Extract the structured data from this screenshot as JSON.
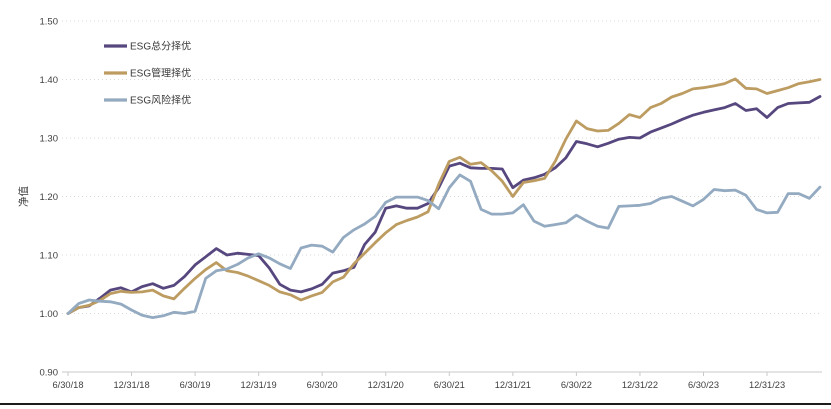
{
  "page": {
    "background_color": "#ffffff",
    "bottom_rule_color": "#1c1c1c"
  },
  "chart_data": {
    "type": "line",
    "title": "",
    "xlabel": "",
    "ylabel": "净值",
    "ylim": [
      0.9,
      1.5
    ],
    "y_tick_values": [
      0.9,
      1.0,
      1.1,
      1.2,
      1.3,
      1.4,
      1.5
    ],
    "y_tick_labels": [
      "0.90",
      "1.00",
      "1.10",
      "1.20",
      "1.30",
      "1.40",
      "1.50"
    ],
    "x_tick_labels": [
      "6/30/18",
      "12/31/18",
      "6/30/19",
      "12/31/19",
      "6/30/20",
      "12/31/20",
      "6/30/21",
      "12/31/21",
      "6/30/22",
      "12/31/22",
      "6/30/23",
      "12/31/23"
    ],
    "x_tick_months": [
      0,
      6,
      12,
      18,
      24,
      30,
      36,
      42,
      48,
      54,
      60,
      66
    ],
    "months_total": 72,
    "x_start_label": "6/30/18",
    "grid": "horizontal dotted",
    "axis_color": "#c9c9c9",
    "grid_color": "#d9d9d9",
    "label_color": "#3f3f3f",
    "legend": {
      "position": "top-left-inside",
      "items": [
        "ESG总分择优",
        "ESG管理择优",
        "ESG风险择优"
      ]
    },
    "series": [
      {
        "name": "ESG总分择优",
        "color": "#57477f",
        "values": [
          1.0,
          1.01,
          1.013,
          1.026,
          1.04,
          1.044,
          1.037,
          1.046,
          1.051,
          1.043,
          1.048,
          1.063,
          1.083,
          1.097,
          1.111,
          1.1,
          1.103,
          1.101,
          1.099,
          1.078,
          1.05,
          1.04,
          1.037,
          1.042,
          1.05,
          1.069,
          1.073,
          1.079,
          1.118,
          1.139,
          1.18,
          1.184,
          1.18,
          1.18,
          1.188,
          1.215,
          1.252,
          1.257,
          1.249,
          1.248,
          1.248,
          1.247,
          1.215,
          1.228,
          1.232,
          1.238,
          1.249,
          1.266,
          1.294,
          1.29,
          1.285,
          1.291,
          1.298,
          1.301,
          1.3,
          1.31,
          1.317,
          1.324,
          1.332,
          1.339,
          1.344,
          1.348,
          1.352,
          1.359,
          1.347,
          1.35,
          1.335,
          1.352,
          1.359,
          1.36,
          1.361,
          1.371
        ]
      },
      {
        "name": "ESG管理择优",
        "color": "#bd9c62",
        "values": [
          1.0,
          1.01,
          1.014,
          1.022,
          1.034,
          1.038,
          1.036,
          1.037,
          1.04,
          1.03,
          1.025,
          1.043,
          1.06,
          1.075,
          1.087,
          1.073,
          1.07,
          1.064,
          1.056,
          1.048,
          1.037,
          1.032,
          1.023,
          1.03,
          1.036,
          1.054,
          1.062,
          1.085,
          1.103,
          1.121,
          1.138,
          1.152,
          1.159,
          1.165,
          1.174,
          1.221,
          1.26,
          1.267,
          1.255,
          1.258,
          1.244,
          1.226,
          1.2,
          1.224,
          1.227,
          1.231,
          1.26,
          1.298,
          1.329,
          1.316,
          1.312,
          1.313,
          1.325,
          1.34,
          1.335,
          1.352,
          1.359,
          1.37,
          1.376,
          1.384,
          1.386,
          1.389,
          1.393,
          1.401,
          1.385,
          1.384,
          1.376,
          1.381,
          1.386,
          1.393,
          1.396,
          1.4
        ]
      },
      {
        "name": "ESG风险择优",
        "color": "#93aac1",
        "values": [
          1.0,
          1.017,
          1.023,
          1.021,
          1.02,
          1.016,
          1.006,
          0.997,
          0.993,
          0.996,
          1.002,
          1.0,
          1.004,
          1.06,
          1.073,
          1.076,
          1.084,
          1.095,
          1.102,
          1.095,
          1.085,
          1.077,
          1.112,
          1.117,
          1.115,
          1.105,
          1.13,
          1.143,
          1.153,
          1.166,
          1.19,
          1.199,
          1.199,
          1.199,
          1.193,
          1.179,
          1.215,
          1.237,
          1.226,
          1.178,
          1.17,
          1.17,
          1.172,
          1.186,
          1.158,
          1.149,
          1.152,
          1.155,
          1.168,
          1.158,
          1.149,
          1.146,
          1.183,
          1.184,
          1.185,
          1.188,
          1.197,
          1.2,
          1.192,
          1.184,
          1.195,
          1.212,
          1.21,
          1.211,
          1.202,
          1.178,
          1.172,
          1.173,
          1.205,
          1.205,
          1.197,
          1.216
        ]
      }
    ]
  }
}
